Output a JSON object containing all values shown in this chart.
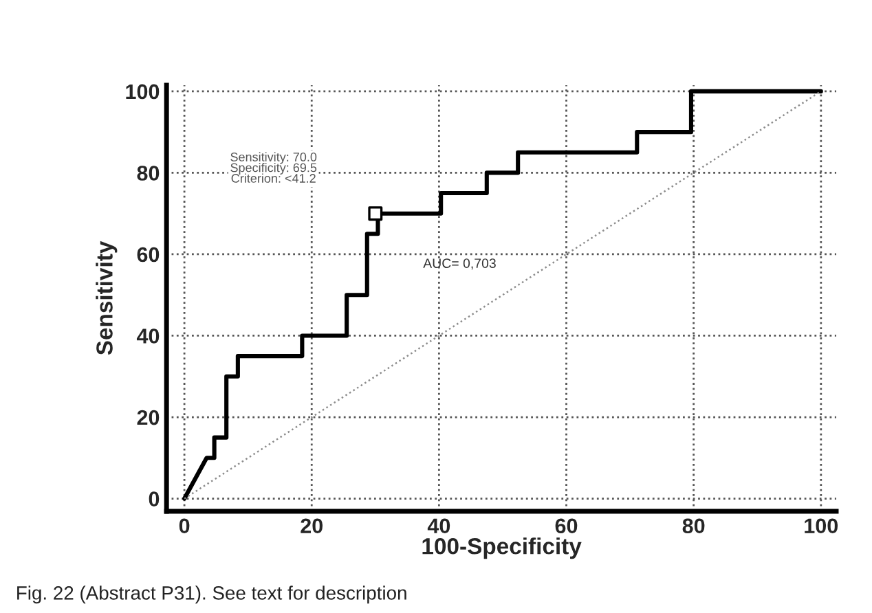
{
  "chart_data": {
    "type": "line",
    "xlabel": "100-Specificity",
    "ylabel": "Sensitivity",
    "series": [
      {
        "color": "#000000",
        "line_style": "solid",
        "x": [
          0,
          3.5,
          4.7,
          4.7,
          6.6,
          6.6,
          8.4,
          8.4,
          18.5,
          18.5,
          25.5,
          25.5,
          28.7,
          28.7,
          30.4,
          30.4,
          40.3,
          40.3,
          47.5,
          47.5,
          52.4,
          52.4,
          71.1,
          71.1,
          79.6,
          79.6,
          100
        ],
        "values": [
          0,
          10,
          10,
          15,
          15,
          30,
          30,
          35,
          35,
          40,
          40,
          50,
          50,
          65,
          65,
          70,
          70,
          75,
          75,
          80,
          80,
          85,
          85,
          90,
          90,
          100,
          100
        ]
      },
      {
        "type": "line",
        "color": "#8c8c8c",
        "line_style": "dotted",
        "x": [
          0,
          100
        ],
        "values": [
          0,
          100
        ]
      },
      {
        "type": "scatter",
        "color": "#000000",
        "marker": "square",
        "x": [
          30
        ],
        "values": [
          70
        ]
      }
    ],
    "annotations": [
      "Sensitivity: 70.0\nSpecificity: 69.5\nCriterion: <41.2",
      "AUC= 0,703",
      "Fig. 22 (Abstract P31). See text for description"
    ],
    "xlim": [
      -2.8,
      102.4
    ],
    "ylim": [
      -3.1,
      101.5
    ],
    "xticks": [
      0,
      20,
      40,
      60,
      80,
      100
    ],
    "yticks": [
      0,
      20,
      40,
      60,
      80,
      100
    ],
    "grid": true,
    "legend": false
  }
}
